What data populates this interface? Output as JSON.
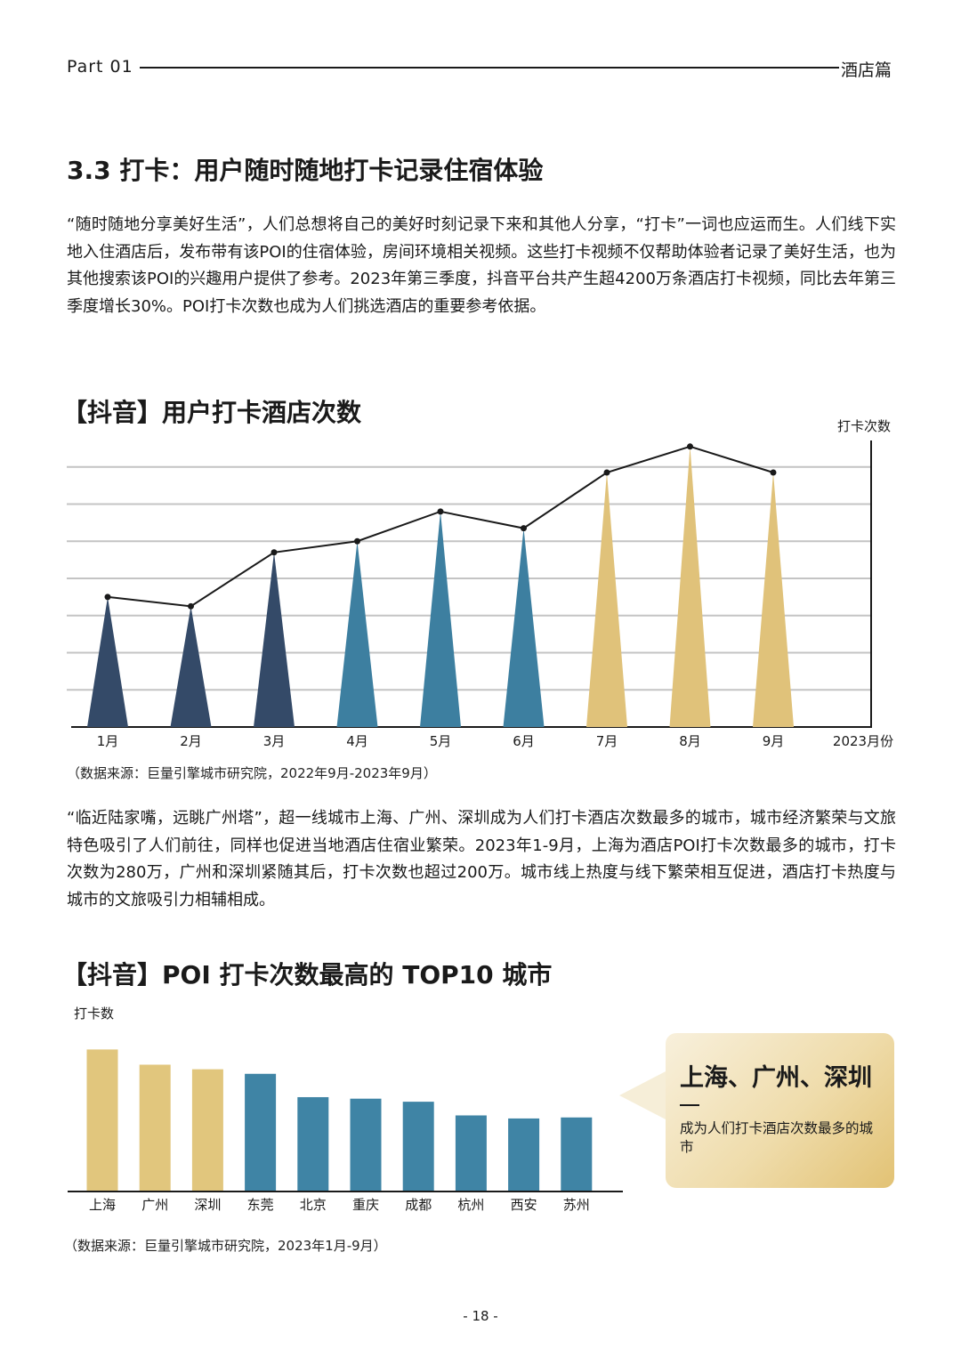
{
  "header": {
    "part": "Part  01",
    "section": "酒店篇"
  },
  "section_title": "3.3 打卡：用户随时随地打卡记录住宿体验",
  "paragraph1": "“随时随地分享美好生活”，人们总想将自己的美好时刻记录下来和其他人分享，“打卡”一词也应运而生。人们线下实地入住酒店后，发布带有该POI的住宿体验，房间环境相关视频。这些打卡视频不仅帮助体验者记录了美好生活，也为其他搜索该POI的兴趣用户提供了参考。2023年第三季度，抖音平台共产生超4200万条酒店打卡视频，同比去年第三季度增长30%。POI打卡次数也成为人们挑选酒店的重要参考依据。",
  "chart1_title": "【抖音】用户打卡酒店次数",
  "chart1_source": "（数据来源：巨量引擎城市研究院，2022年9月-2023年9月）",
  "paragraph2": "“临近陆家嘴，远眺广州塔”，超一线城市上海、广州、深圳成为人们打卡酒店次数最多的城市，城市经济繁荣与文旅特色吸引了人们前往，同样也促进当地酒店住宿业繁荣。2023年1-9月，上海为酒店POI打卡次数最多的城市，打卡次数为280万，广州和深圳紧随其后，打卡次数也超过200万。城市线上热度与线下繁荣相互促进，酒店打卡热度与城市的文旅吸引力相辅相成。",
  "chart2_title": "【抖音】POI 打卡次数最高的 TOP10 城市",
  "chart2_source": "（数据来源：巨量引擎城市研究院，2023年1月-9月）",
  "callout": {
    "title": "上海、广州、深圳",
    "desc": "成为人们打卡酒店次数最多的城市"
  },
  "page_number": "- 18 -",
  "chart_data": [
    {
      "type": "line",
      "ylabel": "打卡次数",
      "xlabel": "2023月份",
      "categories": [
        "1月",
        "2月",
        "3月",
        "4月",
        "5月",
        "6月",
        "7月",
        "8月",
        "9月"
      ],
      "values": [
        3.5,
        3.25,
        4.7,
        5.0,
        5.8,
        5.35,
        6.85,
        7.55,
        6.85
      ],
      "ylim": [
        0,
        8
      ],
      "grid": true,
      "colors": [
        "#344a68",
        "#344a68",
        "#344a68",
        "#3d7fa0",
        "#3d7fa0",
        "#3d7fa0",
        "#e0c27a",
        "#e0c27a",
        "#e0c27a"
      ]
    },
    {
      "type": "bar",
      "ylabel": "打卡数",
      "categories": [
        "上海",
        "广州",
        "深圳",
        "东莞",
        "北京",
        "重庆",
        "成都",
        "杭州",
        "西安",
        "苏州"
      ],
      "values": [
        280,
        250,
        241,
        232,
        186,
        183,
        177,
        150,
        144,
        146
      ],
      "ylim": [
        0,
        300
      ],
      "colors": [
        "#e1c67d",
        "#e1c67d",
        "#e1c67d",
        "#3f84a5",
        "#3f84a5",
        "#3f84a5",
        "#3f84a5",
        "#3f84a5",
        "#3f84a5",
        "#3f84a5"
      ]
    }
  ]
}
